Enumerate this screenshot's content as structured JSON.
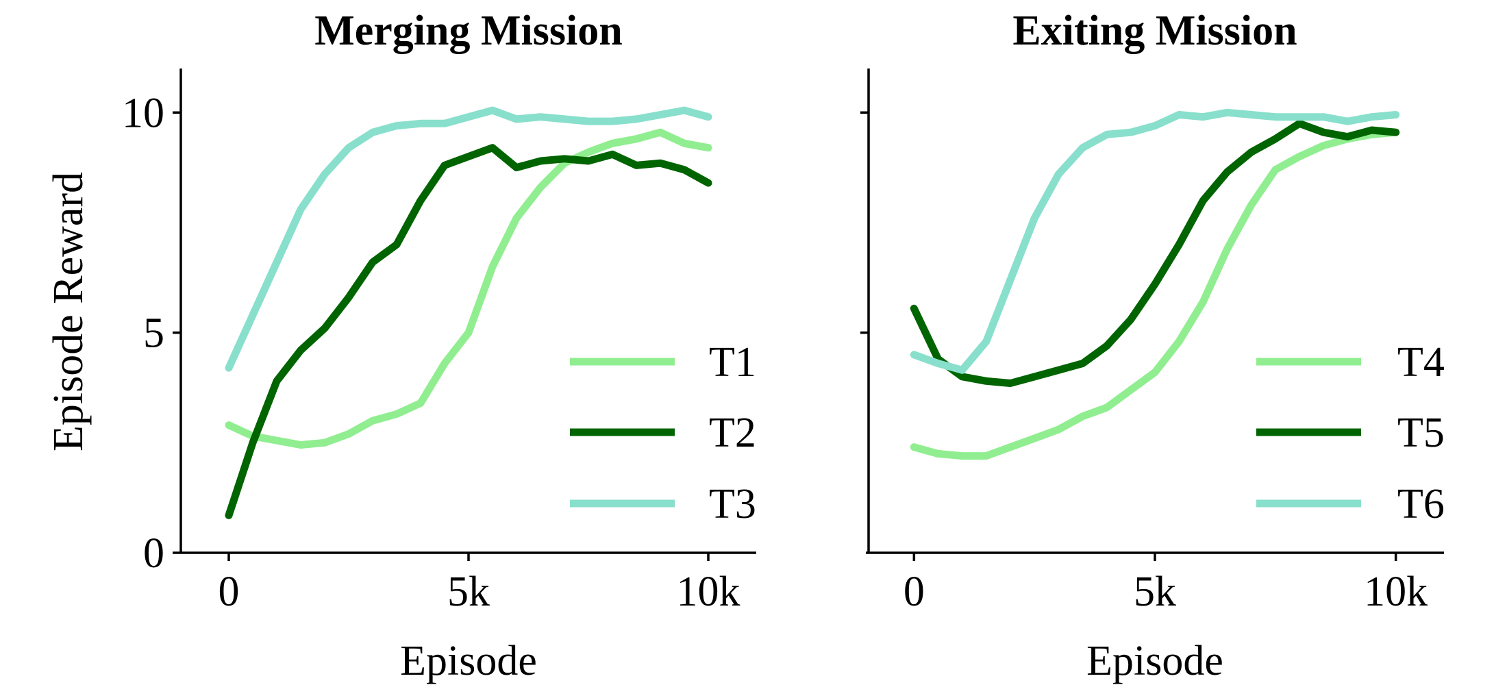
{
  "chart_data": [
    {
      "type": "line",
      "title": "Merging Mission",
      "xlabel": "Episode",
      "ylabel": "Episode Reward",
      "xlim": [
        -1000,
        11000
      ],
      "ylim": [
        0,
        11
      ],
      "xticks": [
        0,
        5000,
        10000
      ],
      "xtick_labels": [
        "0",
        "5k",
        "10k"
      ],
      "yticks": [
        0,
        5,
        10
      ],
      "ytick_labels": [
        "0",
        "5",
        "10"
      ],
      "legend_position": "lower-right",
      "series": [
        {
          "name": "T1",
          "color": "#90ee90",
          "x": [
            0,
            500,
            1000,
            1500,
            2000,
            2500,
            3000,
            3500,
            4000,
            4500,
            5000,
            5500,
            6000,
            6500,
            7000,
            7500,
            8000,
            8500,
            9000,
            9500,
            10000
          ],
          "y": [
            2.9,
            2.65,
            2.55,
            2.45,
            2.5,
            2.7,
            3.0,
            3.15,
            3.4,
            4.3,
            5.0,
            6.5,
            7.6,
            8.3,
            8.85,
            9.1,
            9.3,
            9.4,
            9.55,
            9.3,
            9.2
          ]
        },
        {
          "name": "T2",
          "color": "#006400",
          "x": [
            0,
            500,
            1000,
            1500,
            2000,
            2500,
            3000,
            3500,
            4000,
            4500,
            5000,
            5500,
            6000,
            6500,
            7000,
            7500,
            8000,
            8500,
            9000,
            9500,
            10000
          ],
          "y": [
            0.85,
            2.5,
            3.9,
            4.6,
            5.1,
            5.8,
            6.6,
            7.0,
            8.0,
            8.8,
            9.0,
            9.2,
            8.75,
            8.9,
            8.95,
            8.9,
            9.05,
            8.8,
            8.85,
            8.7,
            8.4
          ]
        },
        {
          "name": "T3",
          "color": "#88dfcc",
          "x": [
            0,
            500,
            1000,
            1500,
            2000,
            2500,
            3000,
            3500,
            4000,
            4500,
            5000,
            5500,
            6000,
            6500,
            7000,
            7500,
            8000,
            8500,
            9000,
            9500,
            10000
          ],
          "y": [
            4.2,
            5.4,
            6.6,
            7.8,
            8.6,
            9.2,
            9.55,
            9.7,
            9.75,
            9.75,
            9.9,
            10.05,
            9.85,
            9.9,
            9.85,
            9.8,
            9.8,
            9.85,
            9.95,
            10.05,
            9.9
          ]
        }
      ]
    },
    {
      "type": "line",
      "title": "Exiting Mission",
      "xlabel": "Episode",
      "ylabel": "",
      "xlim": [
        -1000,
        11000
      ],
      "ylim": [
        0,
        11
      ],
      "xticks": [
        0,
        5000,
        10000
      ],
      "xtick_labels": [
        "0",
        "5k",
        "10k"
      ],
      "yticks": [
        5,
        10
      ],
      "ytick_labels": [],
      "legend_position": "lower-right",
      "series": [
        {
          "name": "T4",
          "color": "#90ee90",
          "x": [
            0,
            500,
            1000,
            1500,
            2000,
            2500,
            3000,
            3500,
            4000,
            4500,
            5000,
            5500,
            6000,
            6500,
            7000,
            7500,
            8000,
            8500,
            9000,
            9500,
            10000
          ],
          "y": [
            2.4,
            2.25,
            2.2,
            2.2,
            2.4,
            2.6,
            2.8,
            3.1,
            3.3,
            3.7,
            4.1,
            4.8,
            5.7,
            6.9,
            7.9,
            8.7,
            9.0,
            9.25,
            9.4,
            9.5,
            9.55
          ]
        },
        {
          "name": "T5",
          "color": "#006400",
          "x": [
            0,
            500,
            1000,
            1500,
            2000,
            2500,
            3000,
            3500,
            4000,
            4500,
            5000,
            5500,
            6000,
            6500,
            7000,
            7500,
            8000,
            8500,
            9000,
            9500,
            10000
          ],
          "y": [
            5.55,
            4.4,
            4.0,
            3.9,
            3.85,
            4.0,
            4.15,
            4.3,
            4.7,
            5.3,
            6.1,
            7.0,
            8.0,
            8.65,
            9.1,
            9.4,
            9.75,
            9.55,
            9.45,
            9.6,
            9.55
          ]
        },
        {
          "name": "T6",
          "color": "#88dfcc",
          "x": [
            0,
            500,
            1000,
            1500,
            2000,
            2500,
            3000,
            3500,
            4000,
            4500,
            5000,
            5500,
            6000,
            6500,
            7000,
            7500,
            8000,
            8500,
            9000,
            9500,
            10000
          ],
          "y": [
            4.5,
            4.3,
            4.15,
            4.8,
            6.2,
            7.6,
            8.6,
            9.2,
            9.5,
            9.55,
            9.7,
            9.95,
            9.9,
            10.0,
            9.95,
            9.9,
            9.9,
            9.9,
            9.8,
            9.9,
            9.95
          ]
        }
      ]
    }
  ]
}
